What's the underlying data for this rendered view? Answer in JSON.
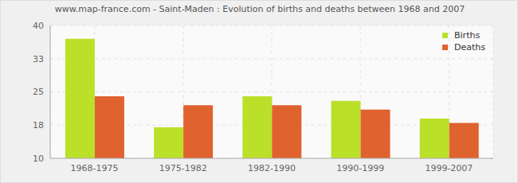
{
  "chart_data": {
    "type": "bar",
    "title": "www.map-france.com - Saint-Maden : Evolution of births and deaths between 1968 and 2007",
    "categories": [
      "1968-1975",
      "1975-1982",
      "1982-1990",
      "1990-1999",
      "1999-2007"
    ],
    "series": [
      {
        "name": "Births",
        "color": "#bbe02a",
        "values": [
          37,
          17,
          24,
          23,
          19
        ]
      },
      {
        "name": "Deaths",
        "color": "#e0622f",
        "values": [
          24,
          22,
          22,
          21,
          18
        ]
      }
    ],
    "ylim": [
      10,
      40
    ],
    "yticks": [
      10,
      {
        "value": 17.5,
        "label": "18"
      },
      25,
      {
        "value": 32.5,
        "label": "33"
      },
      40
    ],
    "grid": true,
    "legend": "upper right"
  }
}
